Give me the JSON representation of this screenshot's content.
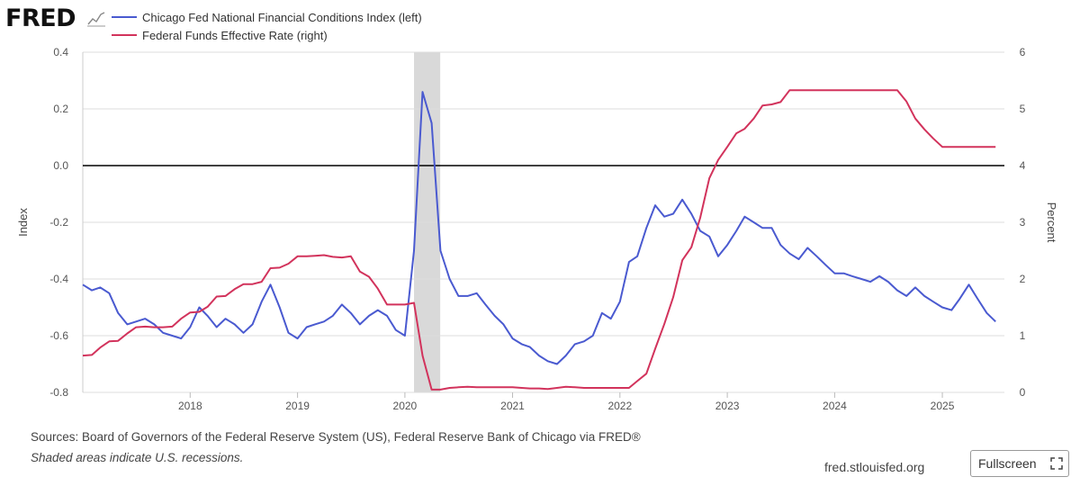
{
  "header": {
    "logo_text": "FRED",
    "logo_icon": "line-chart-icon"
  },
  "legend": [
    {
      "label": "Chicago Fed National Financial Conditions Index (left)",
      "color": "#4a5ad0"
    },
    {
      "label": "Federal Funds Effective Rate (right)",
      "color": "#d2335c"
    }
  ],
  "footer": {
    "sources": "Sources: Board of Governors of the Federal Reserve System (US), Federal Reserve Bank of Chicago via FRED®",
    "note": "Shaded areas indicate U.S. recessions.",
    "site": "fred.stlouisfed.org",
    "fullscreen_label": "Fullscreen",
    "fullscreen_icon": "expand-icon"
  },
  "chart_data": {
    "type": "line",
    "xlim": [
      "2017-01-01",
      "2025-07-31"
    ],
    "x_ticks": [
      "2018",
      "2019",
      "2020",
      "2021",
      "2022",
      "2023",
      "2024",
      "2025"
    ],
    "left_axis": {
      "label": "Index",
      "lim": [
        -0.8,
        0.4
      ],
      "ticks": [
        "0.4",
        "0.2",
        "0.0",
        "-0.2",
        "-0.4",
        "-0.6",
        "-0.8"
      ],
      "tick_values": [
        0.4,
        0.2,
        0.0,
        -0.2,
        -0.4,
        -0.6,
        -0.8
      ]
    },
    "right_axis": {
      "label": "Percent",
      "lim": [
        0,
        6
      ],
      "ticks": [
        "6",
        "5",
        "4",
        "3",
        "2",
        "1",
        "0"
      ],
      "tick_values": [
        6,
        5,
        4,
        3,
        2,
        1,
        0
      ]
    },
    "reference_line": 0.0,
    "recession": [
      "2020-02-01",
      "2020-04-30"
    ],
    "grid": true,
    "series": [
      {
        "name": "Chicago Fed National Financial Conditions Index (left)",
        "axis": "left",
        "color": "#4a5ad0",
        "x": [
          "2017-01-01",
          "2017-02-01",
          "2017-03-01",
          "2017-04-01",
          "2017-05-01",
          "2017-06-01",
          "2017-07-01",
          "2017-08-01",
          "2017-09-01",
          "2017-10-01",
          "2017-11-01",
          "2017-12-01",
          "2018-01-01",
          "2018-02-01",
          "2018-03-01",
          "2018-04-01",
          "2018-05-01",
          "2018-06-01",
          "2018-07-01",
          "2018-08-01",
          "2018-09-01",
          "2018-10-01",
          "2018-11-01",
          "2018-12-01",
          "2019-01-01",
          "2019-02-01",
          "2019-03-01",
          "2019-04-01",
          "2019-05-01",
          "2019-06-01",
          "2019-07-01",
          "2019-08-01",
          "2019-09-01",
          "2019-10-01",
          "2019-11-01",
          "2019-12-01",
          "2020-01-01",
          "2020-02-01",
          "2020-03-01",
          "2020-04-01",
          "2020-05-01",
          "2020-06-01",
          "2020-07-01",
          "2020-08-01",
          "2020-09-01",
          "2020-10-01",
          "2020-11-01",
          "2020-12-01",
          "2021-01-01",
          "2021-02-01",
          "2021-03-01",
          "2021-04-01",
          "2021-05-01",
          "2021-06-01",
          "2021-07-01",
          "2021-08-01",
          "2021-09-01",
          "2021-10-01",
          "2021-11-01",
          "2021-12-01",
          "2022-01-01",
          "2022-02-01",
          "2022-03-01",
          "2022-04-01",
          "2022-05-01",
          "2022-06-01",
          "2022-07-01",
          "2022-08-01",
          "2022-09-01",
          "2022-10-01",
          "2022-11-01",
          "2022-12-01",
          "2023-01-01",
          "2023-02-01",
          "2023-03-01",
          "2023-04-01",
          "2023-05-01",
          "2023-06-01",
          "2023-07-01",
          "2023-08-01",
          "2023-09-01",
          "2023-10-01",
          "2023-11-01",
          "2023-12-01",
          "2024-01-01",
          "2024-02-01",
          "2024-03-01",
          "2024-04-01",
          "2024-05-01",
          "2024-06-01",
          "2024-07-01",
          "2024-08-01",
          "2024-09-01",
          "2024-10-01",
          "2024-11-01",
          "2024-12-01",
          "2025-01-01",
          "2025-02-01",
          "2025-03-01",
          "2025-04-01",
          "2025-05-01",
          "2025-06-01",
          "2025-07-01"
        ],
        "values": [
          -0.42,
          -0.44,
          -0.43,
          -0.45,
          -0.52,
          -0.56,
          -0.55,
          -0.54,
          -0.56,
          -0.59,
          -0.6,
          -0.61,
          -0.57,
          -0.5,
          -0.53,
          -0.57,
          -0.54,
          -0.56,
          -0.59,
          -0.56,
          -0.48,
          -0.42,
          -0.5,
          -0.59,
          -0.61,
          -0.57,
          -0.56,
          -0.55,
          -0.53,
          -0.49,
          -0.52,
          -0.56,
          -0.53,
          -0.51,
          -0.53,
          -0.58,
          -0.6,
          -0.3,
          0.26,
          0.15,
          -0.3,
          -0.4,
          -0.46,
          -0.46,
          -0.45,
          -0.49,
          -0.53,
          -0.56,
          -0.61,
          -0.63,
          -0.64,
          -0.67,
          -0.69,
          -0.7,
          -0.67,
          -0.63,
          -0.62,
          -0.6,
          -0.52,
          -0.54,
          -0.48,
          -0.34,
          -0.32,
          -0.22,
          -0.14,
          -0.18,
          -0.17,
          -0.12,
          -0.17,
          -0.23,
          -0.25,
          -0.32,
          -0.28,
          -0.23,
          -0.18,
          -0.2,
          -0.22,
          -0.22,
          -0.28,
          -0.31,
          -0.33,
          -0.29,
          -0.32,
          -0.35,
          -0.38,
          -0.38,
          -0.39,
          -0.4,
          -0.41,
          -0.39,
          -0.41,
          -0.44,
          -0.46,
          -0.43,
          -0.46,
          -0.48,
          -0.5,
          -0.51,
          -0.47,
          -0.42,
          -0.47,
          -0.52,
          -0.55
        ]
      },
      {
        "name": "Federal Funds Effective Rate (right)",
        "axis": "right",
        "color": "#d2335c",
        "x": [
          "2017-01-01",
          "2017-02-01",
          "2017-03-01",
          "2017-04-01",
          "2017-05-01",
          "2017-06-01",
          "2017-07-01",
          "2017-08-01",
          "2017-09-01",
          "2017-10-01",
          "2017-11-01",
          "2017-12-01",
          "2018-01-01",
          "2018-02-01",
          "2018-03-01",
          "2018-04-01",
          "2018-05-01",
          "2018-06-01",
          "2018-07-01",
          "2018-08-01",
          "2018-09-01",
          "2018-10-01",
          "2018-11-01",
          "2018-12-01",
          "2019-01-01",
          "2019-02-01",
          "2019-03-01",
          "2019-04-01",
          "2019-05-01",
          "2019-06-01",
          "2019-07-01",
          "2019-08-01",
          "2019-09-01",
          "2019-10-01",
          "2019-11-01",
          "2019-12-01",
          "2020-01-01",
          "2020-02-01",
          "2020-03-01",
          "2020-04-01",
          "2020-05-01",
          "2020-06-01",
          "2020-07-01",
          "2020-08-01",
          "2020-09-01",
          "2020-10-01",
          "2020-11-01",
          "2020-12-01",
          "2021-01-01",
          "2021-02-01",
          "2021-03-01",
          "2021-04-01",
          "2021-05-01",
          "2021-06-01",
          "2021-07-01",
          "2021-08-01",
          "2021-09-01",
          "2021-10-01",
          "2021-11-01",
          "2021-12-01",
          "2022-01-01",
          "2022-02-01",
          "2022-03-01",
          "2022-04-01",
          "2022-05-01",
          "2022-06-01",
          "2022-07-01",
          "2022-08-01",
          "2022-09-01",
          "2022-10-01",
          "2022-11-01",
          "2022-12-01",
          "2023-01-01",
          "2023-02-01",
          "2023-03-01",
          "2023-04-01",
          "2023-05-01",
          "2023-06-01",
          "2023-07-01",
          "2023-08-01",
          "2023-09-01",
          "2023-10-01",
          "2023-11-01",
          "2023-12-01",
          "2024-01-01",
          "2024-02-01",
          "2024-03-01",
          "2024-04-01",
          "2024-05-01",
          "2024-06-01",
          "2024-07-01",
          "2024-08-01",
          "2024-09-01",
          "2024-10-01",
          "2024-11-01",
          "2024-12-01",
          "2025-01-01",
          "2025-02-01",
          "2025-03-01",
          "2025-04-01",
          "2025-05-01",
          "2025-06-01",
          "2025-07-01"
        ],
        "values": [
          0.65,
          0.66,
          0.79,
          0.9,
          0.91,
          1.04,
          1.15,
          1.16,
          1.15,
          1.15,
          1.16,
          1.3,
          1.41,
          1.42,
          1.51,
          1.69,
          1.7,
          1.82,
          1.91,
          1.91,
          1.95,
          2.19,
          2.2,
          2.27,
          2.4,
          2.4,
          2.41,
          2.42,
          2.39,
          2.38,
          2.4,
          2.13,
          2.04,
          1.83,
          1.55,
          1.55,
          1.55,
          1.58,
          0.65,
          0.05,
          0.05,
          0.08,
          0.09,
          0.1,
          0.09,
          0.09,
          0.09,
          0.09,
          0.09,
          0.08,
          0.07,
          0.07,
          0.06,
          0.08,
          0.1,
          0.09,
          0.08,
          0.08,
          0.08,
          0.08,
          0.08,
          0.08,
          0.2,
          0.33,
          0.77,
          1.21,
          1.68,
          2.33,
          2.56,
          3.08,
          3.78,
          4.1,
          4.33,
          4.57,
          4.65,
          4.83,
          5.06,
          5.08,
          5.12,
          5.33,
          5.33,
          5.33,
          5.33,
          5.33,
          5.33,
          5.33,
          5.33,
          5.33,
          5.33,
          5.33,
          5.33,
          5.33,
          5.13,
          4.83,
          4.64,
          4.48,
          4.33,
          4.33,
          4.33,
          4.33,
          4.33,
          4.33,
          4.33
        ]
      }
    ]
  }
}
